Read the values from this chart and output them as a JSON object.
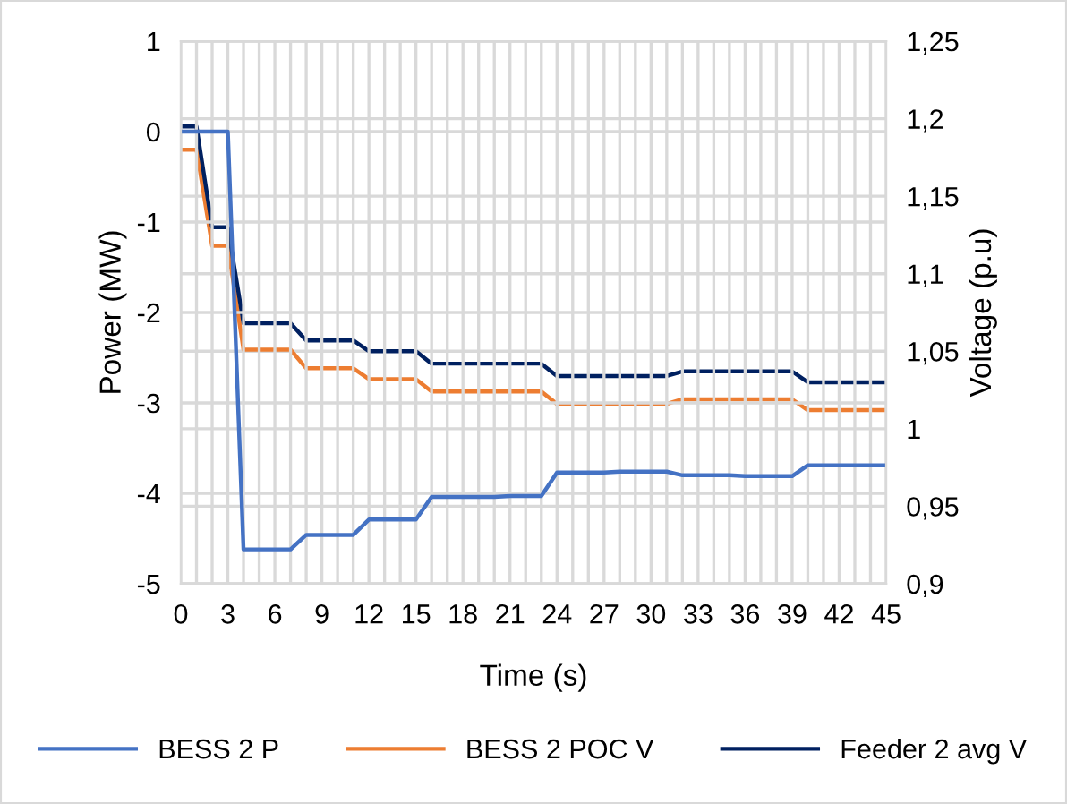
{
  "chart_data": {
    "type": "line",
    "xlabel": "Time (s)",
    "ylabel": "Power (MW)",
    "y2label": "Voltage (p.u)",
    "x": [
      0,
      1,
      2,
      3,
      4,
      5,
      6,
      7,
      8,
      9,
      10,
      11,
      12,
      13,
      14,
      15,
      16,
      17,
      18,
      19,
      20,
      21,
      22,
      23,
      24,
      25,
      26,
      27,
      28,
      29,
      30,
      31,
      32,
      33,
      34,
      35,
      36,
      37,
      38,
      39,
      40,
      41,
      42,
      43,
      44,
      45
    ],
    "xlim": [
      0,
      45
    ],
    "xticks": [
      0,
      {
        "value": 1,
        "label": null
      },
      {
        "value": 2,
        "label": null
      },
      3,
      {
        "value": 4,
        "label": null
      },
      {
        "value": 5,
        "label": null
      },
      6,
      {
        "value": 7,
        "label": null
      },
      {
        "value": 8,
        "label": null
      },
      9,
      {
        "value": 10,
        "label": null
      },
      {
        "value": 11,
        "label": null
      },
      12,
      {
        "value": 13,
        "label": null
      },
      {
        "value": 14,
        "label": null
      },
      15,
      {
        "value": 16,
        "label": null
      },
      {
        "value": 17,
        "label": null
      },
      18,
      {
        "value": 19,
        "label": null
      },
      {
        "value": 20,
        "label": null
      },
      21,
      {
        "value": 22,
        "label": null
      },
      {
        "value": 23,
        "label": null
      },
      24,
      {
        "value": 25,
        "label": null
      },
      {
        "value": 26,
        "label": null
      },
      27,
      {
        "value": 28,
        "label": null
      },
      {
        "value": 29,
        "label": null
      },
      30,
      {
        "value": 31,
        "label": null
      },
      {
        "value": 32,
        "label": null
      },
      33,
      {
        "value": 34,
        "label": null
      },
      {
        "value": 35,
        "label": null
      },
      36,
      {
        "value": 37,
        "label": null
      },
      {
        "value": 38,
        "label": null
      },
      39,
      {
        "value": 40,
        "label": null
      },
      {
        "value": 41,
        "label": null
      },
      42,
      {
        "value": 43,
        "label": null
      },
      {
        "value": 44,
        "label": null
      },
      45
    ],
    "ylim": [
      -5,
      1
    ],
    "yticks": [
      -5,
      -4,
      -3,
      -2,
      -1,
      0,
      1
    ],
    "y2lim": [
      0.9,
      1.25
    ],
    "y2ticks": [
      {
        "value": 0.9,
        "label": "0,9"
      },
      {
        "value": 0.95,
        "label": "0,95"
      },
      {
        "value": 1,
        "label": "1"
      },
      {
        "value": 1.05,
        "label": "1,05"
      },
      {
        "value": 1.1,
        "label": "1,1"
      },
      {
        "value": 1.15,
        "label": "1,15"
      },
      {
        "value": 1.2,
        "label": "1,2"
      },
      {
        "value": 1.25,
        "label": "1,25"
      }
    ],
    "grid": true,
    "legend": "bottom",
    "marker": "none",
    "line_style": "solid",
    "series": [
      {
        "name": "BESS 2 P",
        "color": "#4472c4",
        "values": [
          0,
          0,
          0,
          0,
          -4.62,
          -4.62,
          -4.62,
          -4.62,
          -4.46,
          -4.46,
          -4.46,
          -4.46,
          -4.29,
          -4.29,
          -4.29,
          -4.29,
          -4.04,
          -4.04,
          -4.04,
          -4.04,
          -4.04,
          -4.03,
          -4.03,
          -4.03,
          -3.77,
          -3.77,
          -3.77,
          -3.77,
          -3.76,
          -3.76,
          -3.76,
          -3.76,
          -3.8,
          -3.8,
          -3.8,
          -3.8,
          -3.81,
          -3.81,
          -3.81,
          -3.81,
          -3.69,
          -3.69,
          -3.69,
          -3.69,
          -3.69,
          -3.69
        ]
      },
      {
        "name": "BESS 2 POC V",
        "color": "#ed7d31",
        "axis": "y2",
        "values": [
          1.18,
          1.18,
          1.118,
          1.118,
          1.051,
          1.051,
          1.051,
          1.051,
          1.039,
          1.039,
          1.039,
          1.039,
          1.032,
          1.032,
          1.032,
          1.032,
          1.024,
          1.024,
          1.024,
          1.024,
          1.024,
          1.024,
          1.024,
          1.024,
          1.016,
          1.016,
          1.016,
          1.016,
          1.016,
          1.016,
          1.016,
          1.016,
          1.019,
          1.019,
          1.019,
          1.019,
          1.019,
          1.019,
          1.019,
          1.019,
          1.012,
          1.012,
          1.012,
          1.012,
          1.012,
          1.012
        ]
      },
      {
        "name": "Feeder 2 avg V",
        "color": "#002060",
        "axis": "y2",
        "values": [
          1.195,
          1.195,
          1.13,
          1.13,
          1.068,
          1.068,
          1.068,
          1.068,
          1.057,
          1.057,
          1.057,
          1.057,
          1.05,
          1.05,
          1.05,
          1.05,
          1.042,
          1.042,
          1.042,
          1.042,
          1.042,
          1.042,
          1.042,
          1.042,
          1.034,
          1.034,
          1.034,
          1.034,
          1.034,
          1.034,
          1.034,
          1.034,
          1.037,
          1.037,
          1.037,
          1.037,
          1.037,
          1.037,
          1.037,
          1.037,
          1.03,
          1.03,
          1.03,
          1.03,
          1.03,
          1.03
        ]
      }
    ]
  }
}
